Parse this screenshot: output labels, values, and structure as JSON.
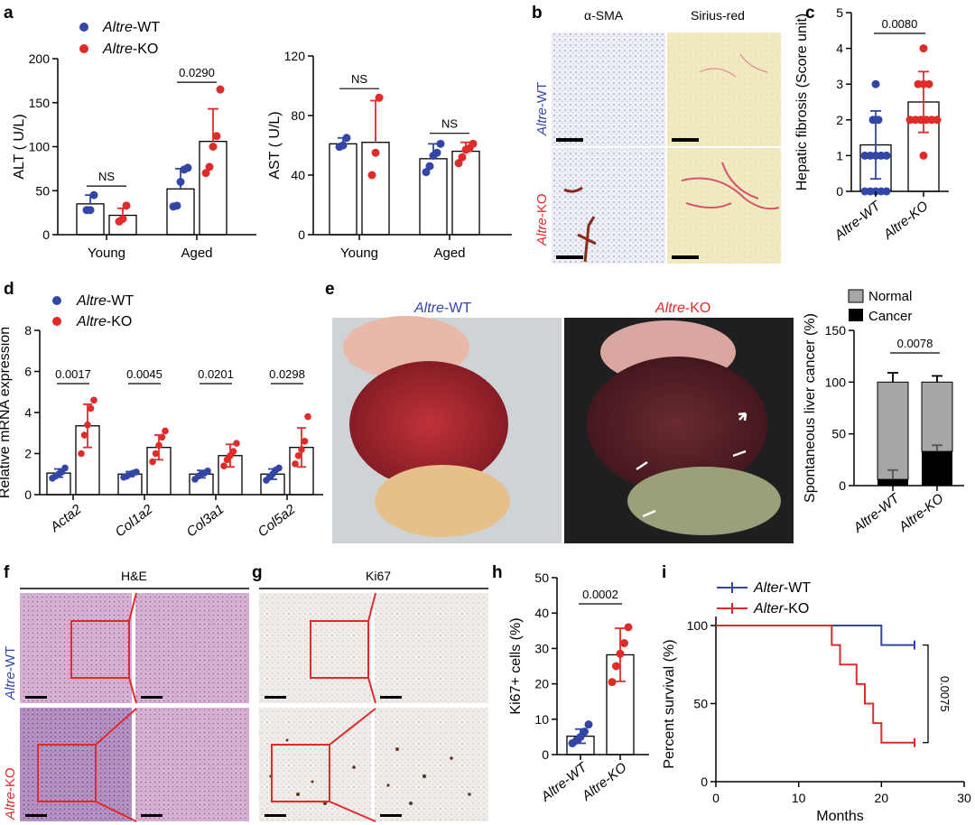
{
  "colors": {
    "wt": "#3346a6",
    "ko": "#e02b2b",
    "black": "#000000",
    "gray": "#a6a6a6"
  },
  "legend": {
    "wt_italic": "Altre",
    "wt_suffix": "-WT",
    "ko_italic": "Altre",
    "ko_suffix": "-KO",
    "surv_wt_italic": "Alter",
    "surv_wt_suffix": "-WT",
    "surv_ko_italic": "Alter",
    "surv_ko_suffix": "-KO",
    "normal": "Normal",
    "cancer": "Cancer"
  },
  "panel_labels": {
    "a": "a",
    "b": "b",
    "c": "c",
    "d": "d",
    "e": "e",
    "f": "f",
    "g": "g",
    "h": "h",
    "i": "i"
  },
  "stain_titles": {
    "asma": "α-SMA",
    "sirius": "Sirius-red",
    "he": "H&E",
    "ki67": "Ki67"
  },
  "photo_titles": {
    "wt_italic": "Altre",
    "wt_suffix": "-WT",
    "ko_italic": "Altre",
    "ko_suffix": "-KO"
  },
  "row_labels": {
    "wt_italic": "Altre",
    "wt_suffix": "-WT",
    "ko_italic": "Altre",
    "ko_suffix": "-KO"
  },
  "chart_data": [
    {
      "id": "a_alt",
      "type": "bar",
      "ylabel": "ALT ( U/L)",
      "ylim": [
        0,
        200
      ],
      "yticks": [
        "0",
        "50",
        "100",
        "150",
        "200"
      ],
      "groups": [
        "Young",
        "Aged"
      ],
      "series": [
        {
          "name": "Altre-WT",
          "means": [
            35,
            52
          ],
          "sd": [
            10,
            23
          ],
          "points": [
            [
              28,
              28,
              45
            ],
            [
              32,
              33,
              60,
              74,
              76
            ]
          ]
        },
        {
          "name": "Altre-KO",
          "means": [
            22,
            106
          ],
          "sd": [
            8,
            37
          ],
          "points": [
            [
              15,
              18,
              33
            ],
            [
              70,
              77,
              100,
              112,
              165
            ]
          ]
        }
      ],
      "annotations": [
        {
          "group": "Young",
          "text": "NS"
        },
        {
          "group": "Aged",
          "text": "0.0290"
        }
      ]
    },
    {
      "id": "a_ast",
      "type": "bar",
      "ylabel": "AST ( U/L)",
      "ylim": [
        0,
        120
      ],
      "yticks": [
        "0",
        "40",
        "80",
        "120"
      ],
      "groups": [
        "Young",
        "Aged"
      ],
      "series": [
        {
          "name": "Altre-WT",
          "means": [
            61,
            51
          ],
          "sd": [
            4,
            10
          ],
          "points": [
            [
              59,
              60,
              65
            ],
            [
              42,
              46,
              53,
              55,
              61
            ]
          ]
        },
        {
          "name": "Altre-KO",
          "means": [
            62,
            56
          ],
          "sd": [
            28,
            6
          ],
          "points": [
            [
              40,
              55,
              92
            ],
            [
              48,
              52,
              57,
              58,
              61
            ]
          ]
        }
      ],
      "annotations": [
        {
          "group": "Young",
          "text": "NS"
        },
        {
          "group": "Aged",
          "text": "NS"
        }
      ]
    },
    {
      "id": "c_fibrosis",
      "type": "bar",
      "ylabel": "Hepatic fibrosis (Score unit)",
      "ylim": [
        0,
        5
      ],
      "yticks": [
        "0",
        "1",
        "2",
        "3",
        "4",
        "5"
      ],
      "categories": [
        "Altre-WT",
        "Altre-KO"
      ],
      "means": [
        1.3,
        2.5
      ],
      "sd": [
        0.95,
        0.85
      ],
      "points": [
        [
          0,
          0,
          0,
          0,
          0,
          1,
          1,
          1,
          1,
          1,
          2,
          2,
          3
        ],
        [
          1,
          2,
          2,
          2,
          2,
          2,
          2,
          3,
          3,
          3,
          4
        ]
      ],
      "pvalue": "0.0080"
    },
    {
      "id": "d_mrna",
      "type": "bar",
      "ylabel": "Relative mRNA expression",
      "ylim": [
        0,
        8
      ],
      "yticks": [
        "0",
        "2",
        "4",
        "6",
        "8"
      ],
      "genes": [
        "Acta2",
        "Col1a2",
        "Col3a1",
        "Col5a2"
      ],
      "wt_means": [
        1.05,
        1.0,
        1.0,
        1.0
      ],
      "wt_sd": [
        0.2,
        0.12,
        0.18,
        0.25
      ],
      "ko_means": [
        3.35,
        2.3,
        1.9,
        2.3
      ],
      "ko_sd": [
        1.05,
        0.6,
        0.55,
        0.95
      ],
      "wt_points": [
        [
          0.8,
          0.9,
          1.0,
          1.1,
          1.3
        ],
        [
          0.85,
          0.9,
          1.0,
          1.05,
          1.1
        ],
        [
          0.75,
          0.9,
          1.0,
          1.05,
          1.15
        ],
        [
          0.7,
          0.85,
          1.0,
          1.2,
          1.3
        ]
      ],
      "ko_points": [
        [
          2.0,
          2.9,
          3.4,
          4.2,
          4.6
        ],
        [
          1.6,
          2.0,
          2.4,
          2.8,
          3.1
        ],
        [
          1.4,
          1.7,
          1.9,
          2.1,
          2.5
        ],
        [
          1.5,
          1.9,
          2.2,
          2.6,
          3.8
        ]
      ],
      "pvalues": [
        "0.0017",
        "0.0045",
        "0.0201",
        "0.0298"
      ]
    },
    {
      "id": "e_cancer",
      "type": "stacked_bar",
      "ylabel": "Spontaneous liver cancer (%)",
      "ylim": [
        0,
        150
      ],
      "yticks": [
        "0",
        "50",
        "100",
        "150"
      ],
      "categories": [
        "Altre-WT",
        "Altre-KO"
      ],
      "normal": [
        94,
        67
      ],
      "cancer": [
        6,
        33
      ],
      "normal_sd": [
        9,
        6
      ],
      "cancer_sd": [
        9,
        6
      ],
      "pvalue": "0.0078"
    },
    {
      "id": "h_ki67",
      "type": "bar",
      "ylabel": "Ki67+ cells (%)",
      "ylim": [
        0,
        50
      ],
      "yticks": [
        "0",
        "10",
        "20",
        "30",
        "40",
        "50"
      ],
      "categories": [
        "Altre-WT",
        "Altre-KO"
      ],
      "means": [
        5.2,
        28.2
      ],
      "sd": [
        2.0,
        7.5
      ],
      "points": [
        [
          3.2,
          4.0,
          5.0,
          6.5,
          8.5
        ],
        [
          20.5,
          25.0,
          28.5,
          31.5,
          36.0
        ]
      ],
      "pvalue": "0.0002"
    },
    {
      "id": "i_survival",
      "type": "line",
      "xlabel": "Months",
      "ylabel": "Percent survival (%)",
      "xlim": [
        0,
        30
      ],
      "ylim": [
        0,
        100
      ],
      "xticks": [
        "0",
        "10",
        "20",
        "30"
      ],
      "yticks": [
        "0",
        "50",
        "100"
      ],
      "series": [
        {
          "name": "Alter-WT",
          "steps": [
            [
              0,
              100
            ],
            [
              20,
              100
            ],
            [
              20,
              87.5
            ],
            [
              24,
              87.5
            ]
          ]
        },
        {
          "name": "Alter-KO",
          "steps": [
            [
              0,
              100
            ],
            [
              14,
              100
            ],
            [
              14,
              87.5
            ],
            [
              15,
              87.5
            ],
            [
              15,
              75
            ],
            [
              17,
              75
            ],
            [
              17,
              62.5
            ],
            [
              18,
              62.5
            ],
            [
              18,
              50
            ],
            [
              19,
              50
            ],
            [
              19,
              37.5
            ],
            [
              20,
              37.5
            ],
            [
              20,
              25
            ],
            [
              24,
              25
            ]
          ]
        }
      ],
      "pvalue": "0.0075"
    }
  ]
}
